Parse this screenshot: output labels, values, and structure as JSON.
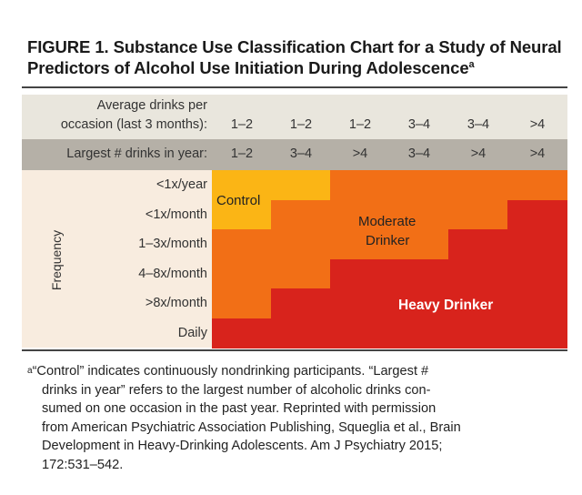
{
  "title": {
    "line1": "FIGURE 1.  Substance Use Classification Chart for a Study of Neural",
    "line2": "Predictors of Alcohol Use Initiation During Adolescence",
    "sup": "a"
  },
  "header": {
    "avg_label_line1": "Average drinks per",
    "avg_label_line2": "occasion (last 3 months):",
    "largest_label": "Largest # drinks in year:",
    "avg_values": [
      "1–2",
      "1–2",
      "1–2",
      "3–4",
      "3–4",
      ">4"
    ],
    "largest_values": [
      "1–2",
      "3–4",
      ">4",
      "3–4",
      ">4",
      ">4"
    ]
  },
  "axis": {
    "frequency_label": "Frequency",
    "rows": [
      "<1x/year",
      "<1x/month",
      "1–3x/month",
      "4–8x/month",
      ">8x/month",
      "Daily"
    ]
  },
  "grid": [
    [
      "control",
      "control",
      "moderate",
      "moderate",
      "moderate",
      "moderate"
    ],
    [
      "control",
      "moderate",
      "moderate",
      "moderate",
      "moderate",
      "heavy"
    ],
    [
      "moderate",
      "moderate",
      "moderate",
      "moderate",
      "heavy",
      "heavy"
    ],
    [
      "moderate",
      "moderate",
      "heavy",
      "heavy",
      "heavy",
      "heavy"
    ],
    [
      "moderate",
      "heavy",
      "heavy",
      "heavy",
      "heavy",
      "heavy"
    ],
    [
      "heavy",
      "heavy",
      "heavy",
      "heavy",
      "heavy",
      "heavy"
    ]
  ],
  "zones": {
    "control": {
      "label": "Control",
      "color": "#fbb515"
    },
    "moderate": {
      "label_line1": "Moderate",
      "label_line2": "Drinker",
      "color": "#f26f16"
    },
    "heavy": {
      "label": "Heavy Drinker",
      "color": "#d8231c"
    }
  },
  "footnote": {
    "mark": "a",
    "lines": [
      "“Control” indicates continuously nondrinking participants. “Largest #",
      "drinks in year” refers to the largest number of alcoholic drinks con-",
      "sumed on one occasion in the past year. Reprinted with permission",
      "from American Psychiatric Association Publishing, Squeglia et al., Brain",
      "Development in Heavy-Drinking Adolescents. Am J Psychiatry 2015;",
      "172:531–542."
    ]
  }
}
